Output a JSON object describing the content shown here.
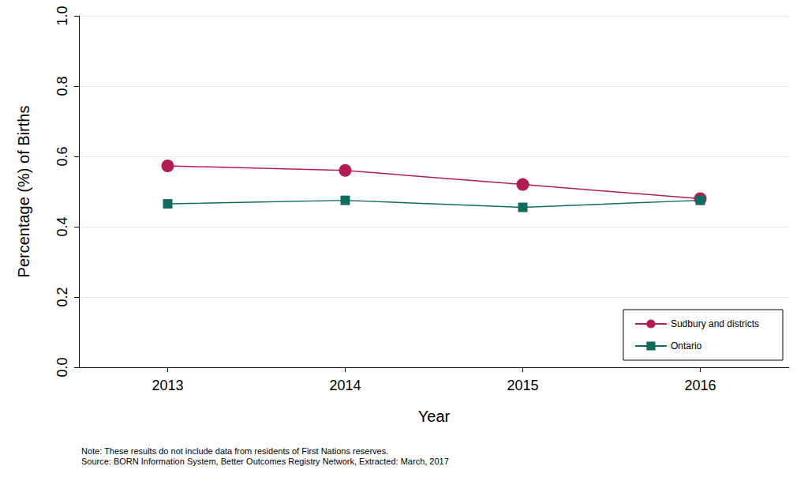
{
  "chart_data": {
    "type": "line",
    "x_label": "Year",
    "y_label": "Percentage (%) of Births",
    "categories": [
      "2013",
      "2014",
      "2015",
      "2016"
    ],
    "series": [
      {
        "name": "Sudbury and districts",
        "color": "#b31b53",
        "marker": "circle",
        "values": [
          0.573,
          0.56,
          0.52,
          0.48
        ]
      },
      {
        "name": "Ontario",
        "color": "#0f6b5b",
        "marker": "square",
        "values": [
          0.465,
          0.475,
          0.455,
          0.475
        ]
      }
    ],
    "ylim": [
      0,
      1
    ],
    "yticks": [
      {
        "value": 0,
        "label": "0.0"
      },
      0.2,
      0.4,
      0.6,
      0.8,
      {
        "value": 1,
        "label": "1.0"
      }
    ],
    "grid": true,
    "legend": "bottom right",
    "annotations": [
      "Note: These results do not include data from residents of First Nations reserves.",
      "Source: BORN Information System, Better Outcomes Registry Network, Extracted: March, 2017"
    ]
  }
}
